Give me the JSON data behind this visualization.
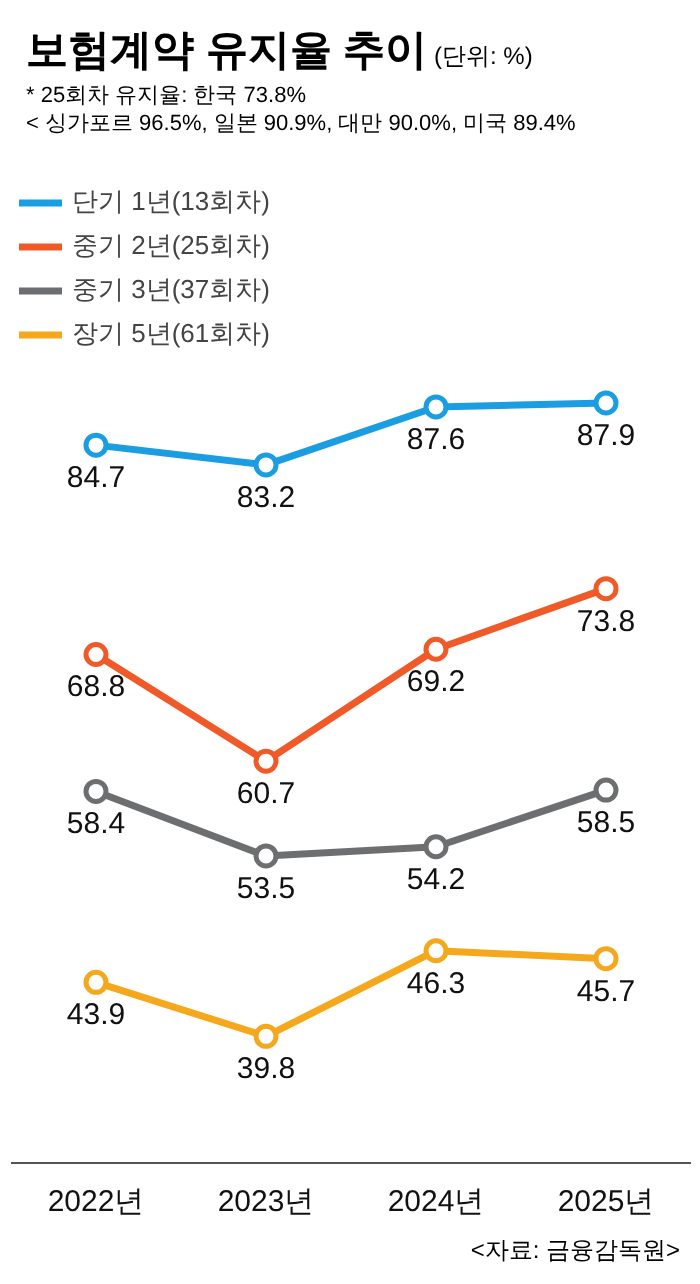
{
  "chart_data": {
    "type": "line",
    "title": "보험계약 유지율 추이",
    "subtitle": "(단위: %)",
    "annotations": [
      "* 25회차 유지율: 한국 73.8%",
      "< 싱가포르 96.5%, 일본 90.9%, 대만 90.0%, 미국 89.4%",
      "<자료: 금융감독원>"
    ],
    "categories": [
      "2022년",
      "2023년",
      "2024년",
      "2025년"
    ],
    "series": [
      {
        "name": "단기 1년(13회차)",
        "color": "#1b9de2",
        "values": [
          84.7,
          83.2,
          87.6,
          87.9
        ]
      },
      {
        "name": "중기 2년(25회차)",
        "color": "#ef5a28",
        "values": [
          68.8,
          60.7,
          69.2,
          73.8
        ]
      },
      {
        "name": "중기 3년(37회차)",
        "color": "#6d6e70",
        "values": [
          58.4,
          53.5,
          54.2,
          58.5
        ]
      },
      {
        "name": "장기 5년(61회차)",
        "color": "#f5a81c",
        "values": [
          43.9,
          39.8,
          46.3,
          45.7
        ]
      }
    ],
    "tick_labels": "x",
    "data_labels": true,
    "legend": "top left",
    "grid": false,
    "marker": "circle",
    "line_style": "solid"
  }
}
